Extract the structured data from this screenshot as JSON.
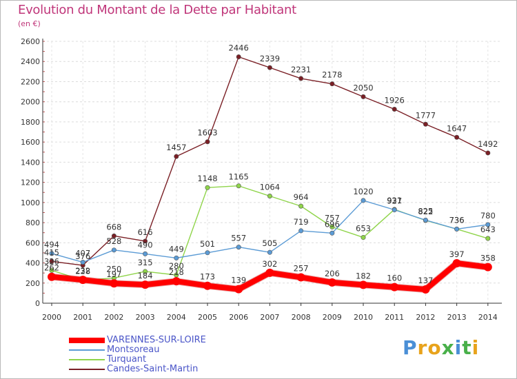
{
  "title": "Evolution du Montant de la Dette par Habitant",
  "unit_label": "(en €)",
  "brand": {
    "text": "Proxiti",
    "letters": [
      "P",
      "r",
      "o",
      "x",
      "i",
      "t",
      "i"
    ],
    "colors": [
      "#4a8fd6",
      "#e8a31c",
      "#e8a31c",
      "#49b04a",
      "#4a8fd6",
      "#49b04a",
      "#e8a31c"
    ]
  },
  "chart_data": {
    "type": "line",
    "title": "Evolution du Montant de la Dette par Habitant",
    "ylabel": "(en €)",
    "xlabel": "",
    "x": [
      "2000",
      "2001",
      "2002",
      "2003",
      "2004",
      "2005",
      "2006",
      "2007",
      "2008",
      "2009",
      "2010",
      "2011",
      "2012",
      "2013",
      "2014"
    ],
    "ylim": [
      0,
      2600
    ],
    "yticks": [
      0,
      200,
      400,
      600,
      800,
      1000,
      1200,
      1400,
      1600,
      1800,
      2000,
      2200,
      2400,
      2600
    ],
    "grid": true,
    "legend": "bottom-left",
    "series": [
      {
        "name": "VARENNES-SUR-LOIRE",
        "color": "#ff0000",
        "values": [
          262,
          232,
          197,
          184,
          218,
          173,
          139,
          302,
          257,
          206,
          182,
          160,
          137,
          397,
          358
        ]
      },
      {
        "name": "Montsoreau",
        "color": "#5b9bd5",
        "values": [
          494,
          407,
          528,
          490,
          449,
          501,
          557,
          505,
          719,
          696,
          1020,
          927,
          825,
          736,
          780
        ]
      },
      {
        "name": "Turquant",
        "color": "#8fd44a",
        "values": [
          326,
          228,
          250,
          315,
          280,
          1148,
          1165,
          1064,
          964,
          757,
          653,
          931,
          822,
          736,
          643
        ]
      },
      {
        "name": "Candes-Saint-Martin",
        "color": "#7a1f25",
        "values": [
          415,
          376,
          668,
          616,
          1457,
          1603,
          2446,
          2339,
          2231,
          2178,
          2050,
          1926,
          1777,
          1647,
          1492
        ]
      }
    ],
    "data_labels": [
      {
        "series": 0,
        "values": [
          "262",
          "232",
          "197",
          "184",
          "218",
          "173",
          "139",
          "302",
          "257",
          "206",
          "182",
          "160",
          "137",
          "397",
          "358"
        ]
      },
      {
        "series": 1,
        "values": [
          "494",
          "407",
          "528",
          "490",
          "449",
          "501",
          "557",
          "505",
          "719",
          "696",
          "1020",
          "927",
          "825",
          "736",
          "780"
        ]
      },
      {
        "series": 2,
        "values": [
          "326",
          "228",
          "250",
          "315",
          "280",
          "1148",
          "1165",
          "1064",
          "964",
          "757",
          "653",
          "931",
          "822",
          "736",
          "643"
        ]
      },
      {
        "series": 3,
        "values": [
          "415",
          "376",
          "668",
          "616",
          "1457",
          "1603",
          "2446",
          "2339",
          "2231",
          "2178",
          "2050",
          "1926",
          "1777",
          "1647",
          "1492"
        ]
      }
    ]
  }
}
